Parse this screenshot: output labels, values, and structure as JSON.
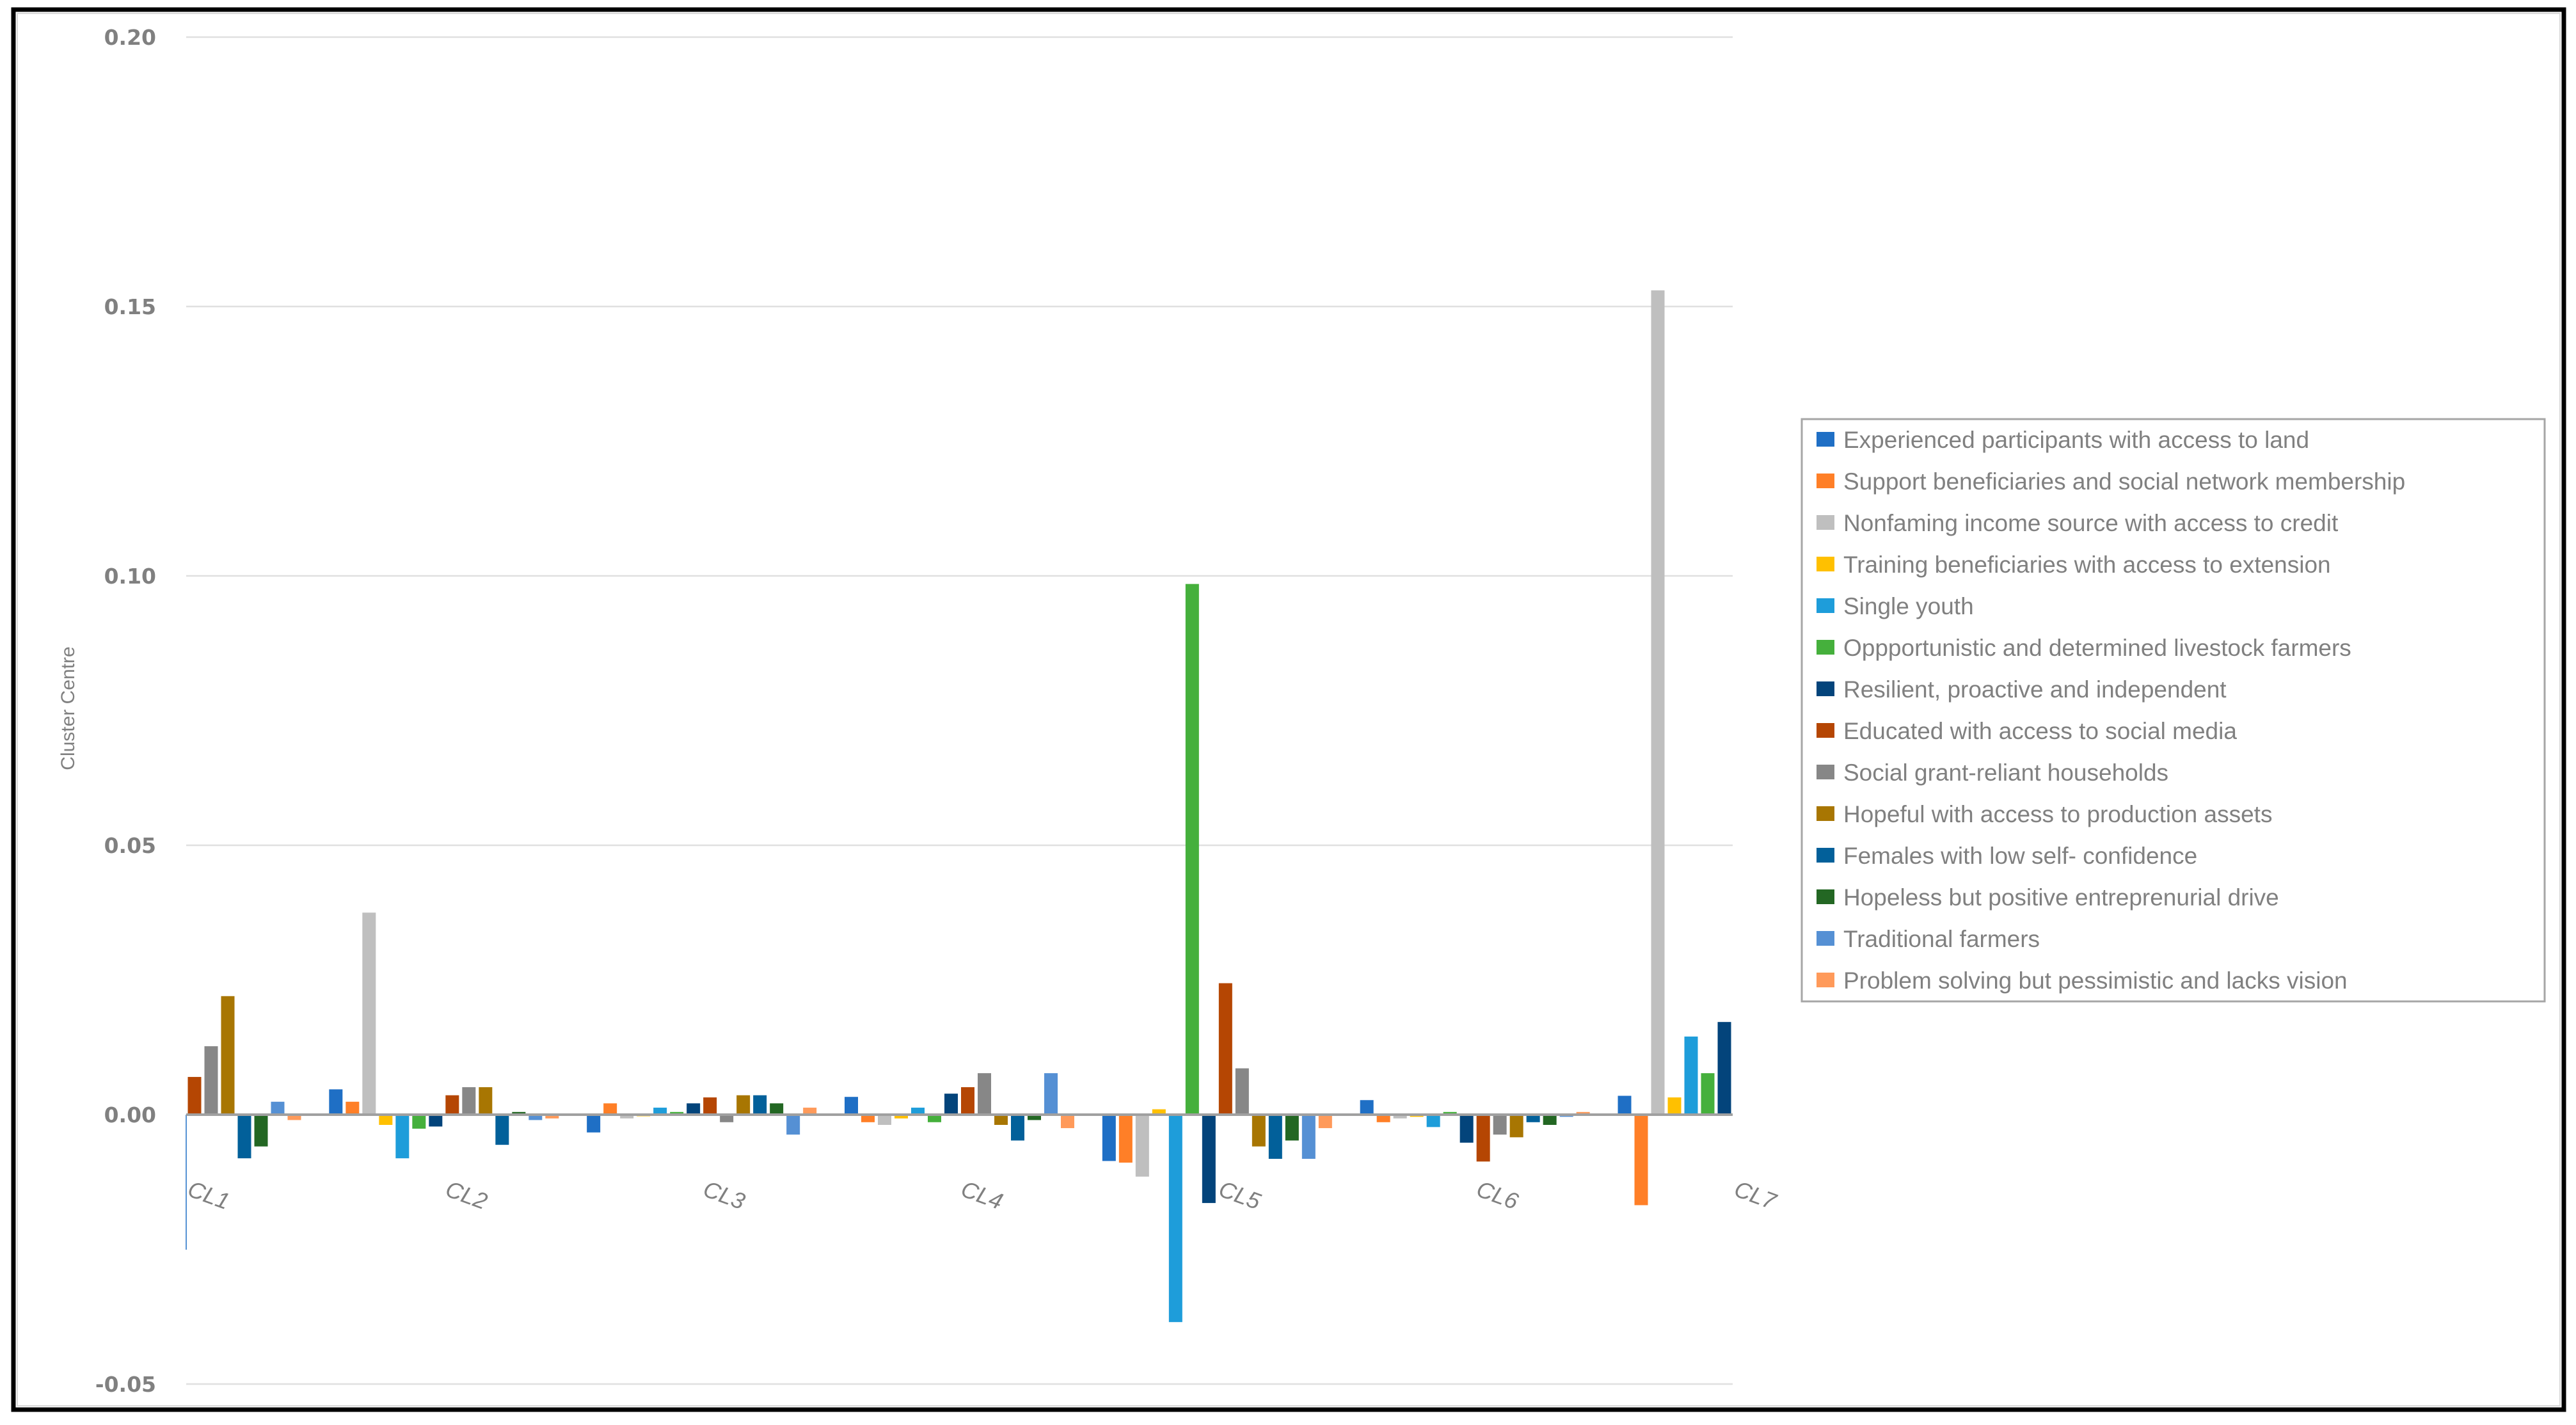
{
  "chart_data": {
    "type": "bar",
    "title": "",
    "xlabel": "",
    "ylabel": "Cluster Centre",
    "ylim": [
      -0.05,
      0.2
    ],
    "yticks": [
      "0.20",
      "0.15",
      "0.10",
      "0.05",
      "0.00",
      "-0.05"
    ],
    "ytick_values": [
      0.2,
      0.15,
      0.1,
      0.05,
      0.0,
      -0.05
    ],
    "grid": true,
    "legend_position": "right",
    "categories": [
      "CL1",
      "CL2",
      "CL3",
      "CL4",
      "CL5",
      "CL6",
      "CL7"
    ],
    "series": [
      {
        "name": "Experienced participants with access to land",
        "color": "#1F6FC5",
        "values": [
          null,
          0.0047,
          -0.0033,
          0.0033,
          -0.0086,
          0.0027,
          0.0035
        ]
      },
      {
        "name": "Support beneficiaries and social network membership",
        "color": "#FF7F27",
        "values": [
          null,
          0.0024,
          0.0021,
          -0.0014,
          -0.0089,
          -0.0014,
          -0.0168
        ]
      },
      {
        "name": "Nonfaming income source with  access to credit",
        "color": "#BFBFBF",
        "values": [
          null,
          0.0375,
          -0.0007,
          -0.0019,
          -0.0115,
          -0.0007,
          0.153
        ]
      },
      {
        "name": "Training beneficiaries with access to extension",
        "color": "#FFC000",
        "values": [
          null,
          -0.0019,
          -0.0003,
          -0.0007,
          0.001,
          -0.0004,
          0.0032
        ]
      },
      {
        "name": "Single youth",
        "color": "#1E9DDA",
        "values": [
          null,
          -0.0081,
          0.0013,
          0.0013,
          -0.0385,
          -0.0023,
          0.0145
        ]
      },
      {
        "name": "Oppportunistic and determined livestock farmers",
        "color": "#45B03C",
        "values": [
          null,
          -0.0026,
          0.0005,
          -0.0014,
          0.0985,
          0.0005,
          0.0077
        ]
      },
      {
        "name": "Resilient, proactive and independent",
        "color": "#03447B",
        "values": [
          null,
          -0.0022,
          0.0021,
          0.0039,
          -0.0164,
          -0.0052,
          0.0172
        ]
      },
      {
        "name": "Educated with access to social media",
        "color": "#B54603",
        "values": [
          0.007,
          0.0036,
          0.0032,
          0.0051,
          0.0244,
          -0.0087,
          null
        ]
      },
      {
        "name": "Social grant-reliant households",
        "color": "#878787",
        "values": [
          0.0127,
          0.0051,
          -0.0014,
          0.0077,
          0.0086,
          -0.0037,
          null
        ]
      },
      {
        "name": "Hopeful with access to production assets",
        "color": "#A87602",
        "values": [
          0.022,
          0.0051,
          0.0036,
          -0.0019,
          -0.0059,
          -0.0042,
          null
        ]
      },
      {
        "name": "Females with low self- confidence",
        "color": "#02609A",
        "values": [
          -0.0081,
          -0.0056,
          0.0036,
          -0.0048,
          -0.0082,
          -0.0014,
          null
        ]
      },
      {
        "name": "Hopeless but positive entreprenurial drive",
        "color": "#236723",
        "values": [
          -0.0059,
          0.0005,
          0.0021,
          -0.001,
          -0.0048,
          -0.0019,
          null
        ]
      },
      {
        "name": "Traditional farmers",
        "color": "#5590D4",
        "values": [
          0.0024,
          -0.001,
          -0.0037,
          0.0077,
          -0.0082,
          -0.0004,
          null
        ]
      },
      {
        "name": "Problem solving but pessimistic and lacks vision",
        "color": "#FF9A5A",
        "values": [
          -0.001,
          -0.0007,
          0.0013,
          -0.0025,
          -0.0025,
          0.0005,
          null
        ]
      }
    ]
  }
}
